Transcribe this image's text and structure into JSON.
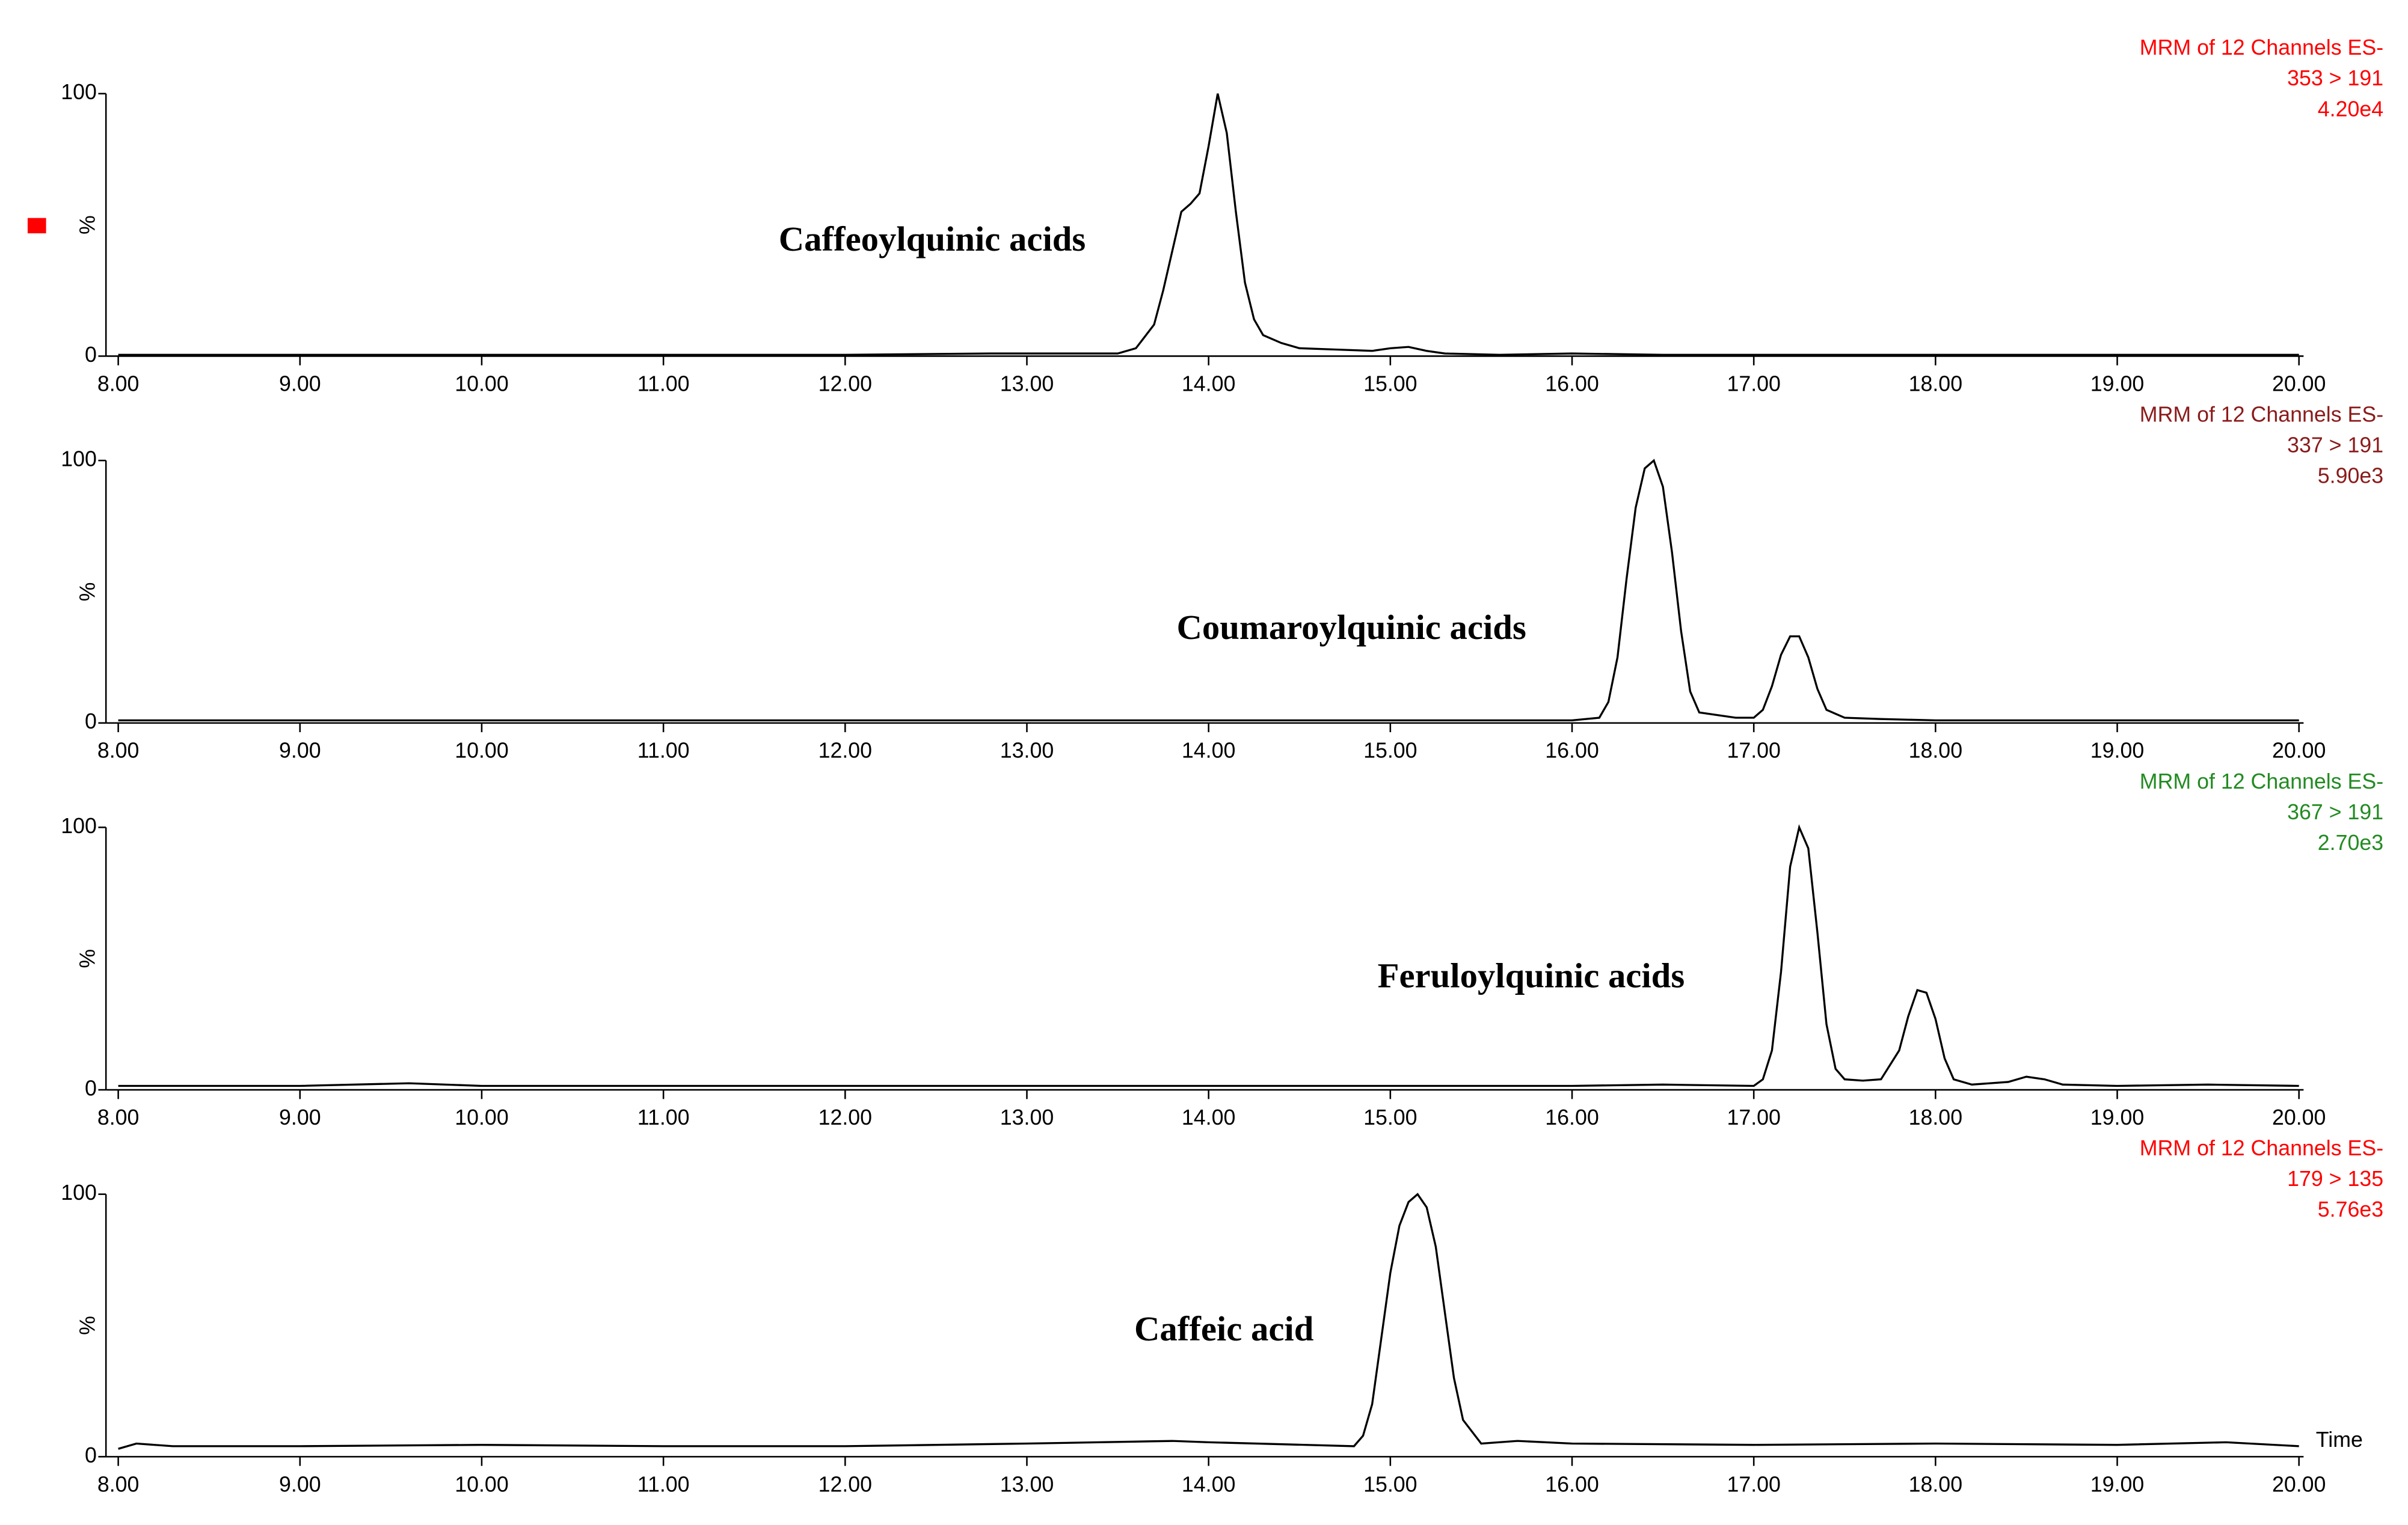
{
  "chart_data": [
    {
      "type": "line",
      "header": [
        "MRM of 12 Channels ES-",
        "353 > 191",
        "4.20e4"
      ],
      "header_color": "#ff0000",
      "annotation": "Caffeoylquinic acids",
      "ylabel": "%",
      "xlim": [
        8,
        20
      ],
      "xticks": [
        {
          "value": 8,
          "label": "8.00"
        },
        {
          "value": 9,
          "label": "9.00"
        },
        {
          "value": 10,
          "label": "10.00"
        },
        {
          "value": 11,
          "label": "11.00"
        },
        {
          "value": 12,
          "label": "12.00"
        },
        {
          "value": 13,
          "label": "13.00"
        },
        {
          "value": 14,
          "label": "14.00"
        },
        {
          "value": 15,
          "label": "15.00"
        },
        {
          "value": 16,
          "label": "16.00"
        },
        {
          "value": 17,
          "label": "17.00"
        },
        {
          "value": 18,
          "label": "18.00"
        },
        {
          "value": 19,
          "label": "19.00"
        },
        {
          "value": 20,
          "label": "20.00"
        }
      ],
      "ylim": [
        0,
        100
      ],
      "yticks": [
        0,
        100
      ],
      "color": "#000000",
      "x": [
        8,
        9,
        10,
        11,
        12,
        12.8,
        13.2,
        13.5,
        13.6,
        13.7,
        13.75,
        13.8,
        13.85,
        13.9,
        13.95,
        14,
        14.05,
        14.1,
        14.15,
        14.2,
        14.25,
        14.3,
        14.4,
        14.5,
        14.7,
        14.9,
        15.0,
        15.1,
        15.2,
        15.3,
        15.6,
        16,
        16.5,
        17,
        18,
        19,
        20
      ],
      "values": [
        0.5,
        0.5,
        0.5,
        0.5,
        0.5,
        1,
        1,
        1,
        3,
        12,
        25,
        40,
        55,
        58,
        62,
        80,
        100,
        85,
        55,
        28,
        14,
        8,
        5,
        3,
        2.5,
        2,
        3,
        3.5,
        2,
        1,
        0.5,
        1,
        0.5,
        0.5,
        0.5,
        0.5,
        0.5
      ]
    },
    {
      "type": "line",
      "header": [
        "MRM of 12 Channels ES-",
        "337 > 191",
        "5.90e3"
      ],
      "header_color": "#8b1a1a",
      "annotation": "Coumaroylquinic acids",
      "ylabel": "%",
      "xlim": [
        8,
        20
      ],
      "xticks": [
        {
          "value": 8,
          "label": "8.00"
        },
        {
          "value": 9,
          "label": "9.00"
        },
        {
          "value": 10,
          "label": "10.00"
        },
        {
          "value": 11,
          "label": "11.00"
        },
        {
          "value": 12,
          "label": "12.00"
        },
        {
          "value": 13,
          "label": "13.00"
        },
        {
          "value": 14,
          "label": "14.00"
        },
        {
          "value": 15,
          "label": "15.00"
        },
        {
          "value": 16,
          "label": "16.00"
        },
        {
          "value": 17,
          "label": "17.00"
        },
        {
          "value": 18,
          "label": "18.00"
        },
        {
          "value": 19,
          "label": "19.00"
        },
        {
          "value": 20,
          "label": "20.00"
        }
      ],
      "ylim": [
        0,
        100
      ],
      "yticks": [
        0,
        100
      ],
      "color": "#000000",
      "x": [
        8,
        10,
        12,
        14,
        15,
        16,
        16.15,
        16.2,
        16.25,
        16.3,
        16.35,
        16.4,
        16.45,
        16.5,
        16.55,
        16.6,
        16.65,
        16.7,
        16.8,
        16.9,
        17.0,
        17.05,
        17.1,
        17.15,
        17.2,
        17.25,
        17.3,
        17.35,
        17.4,
        17.5,
        17.7,
        18,
        19,
        20
      ],
      "values": [
        1,
        1,
        1,
        1,
        1,
        1,
        2,
        8,
        25,
        55,
        82,
        97,
        100,
        90,
        65,
        35,
        12,
        4,
        3,
        2,
        2,
        5,
        14,
        26,
        33,
        33,
        25,
        13,
        5,
        2,
        1.5,
        1,
        1,
        1
      ]
    },
    {
      "type": "line",
      "header": [
        "MRM of 12 Channels ES-",
        "367 > 191",
        "2.70e3"
      ],
      "header_color": "#228b22",
      "annotation": "Feruloylquinic acids",
      "ylabel": "%",
      "xlim": [
        8,
        20
      ],
      "xticks": [
        {
          "value": 8,
          "label": "8.00"
        },
        {
          "value": 9,
          "label": "9.00"
        },
        {
          "value": 10,
          "label": "10.00"
        },
        {
          "value": 11,
          "label": "11.00"
        },
        {
          "value": 12,
          "label": "12.00"
        },
        {
          "value": 13,
          "label": "13.00"
        },
        {
          "value": 14,
          "label": "14.00"
        },
        {
          "value": 15,
          "label": "15.00"
        },
        {
          "value": 16,
          "label": "16.00"
        },
        {
          "value": 17,
          "label": "17.00"
        },
        {
          "value": 18,
          "label": "18.00"
        },
        {
          "value": 19,
          "label": "19.00"
        },
        {
          "value": 20,
          "label": "20.00"
        }
      ],
      "ylim": [
        0,
        100
      ],
      "yticks": [
        0,
        100
      ],
      "color": "#000000",
      "x": [
        8,
        9,
        9.6,
        10,
        11,
        12,
        13,
        14,
        15,
        16,
        16.5,
        17,
        17.05,
        17.1,
        17.15,
        17.2,
        17.25,
        17.3,
        17.35,
        17.4,
        17.45,
        17.5,
        17.6,
        17.7,
        17.8,
        17.85,
        17.9,
        17.95,
        18.0,
        18.05,
        18.1,
        18.2,
        18.4,
        18.5,
        18.6,
        18.7,
        19,
        19.5,
        20
      ],
      "values": [
        1.5,
        1.5,
        2.5,
        1.5,
        1.5,
        1.5,
        1.5,
        1.5,
        1.5,
        1.5,
        2,
        1.5,
        4,
        15,
        45,
        85,
        100,
        92,
        60,
        25,
        8,
        4,
        3.5,
        4,
        15,
        28,
        38,
        37,
        27,
        12,
        4,
        2,
        3,
        5,
        4,
        2,
        1.5,
        2,
        1.5
      ]
    },
    {
      "type": "line",
      "header": [
        "MRM of 12 Channels ES-",
        "179 > 135",
        "5.76e3"
      ],
      "header_color": "#ff0000",
      "annotation": "Caffeic acid",
      "ylabel": "%",
      "xlabel": "Time",
      "xlim": [
        8,
        20
      ],
      "xticks": [
        {
          "value": 8,
          "label": "8.00"
        },
        {
          "value": 9,
          "label": "9.00"
        },
        {
          "value": 10,
          "label": "10.00"
        },
        {
          "value": 11,
          "label": "11.00"
        },
        {
          "value": 12,
          "label": "12.00"
        },
        {
          "value": 13,
          "label": "13.00"
        },
        {
          "value": 14,
          "label": "14.00"
        },
        {
          "value": 15,
          "label": "15.00"
        },
        {
          "value": 16,
          "label": "16.00"
        },
        {
          "value": 17,
          "label": "17.00"
        },
        {
          "value": 18,
          "label": "18.00"
        },
        {
          "value": 19,
          "label": "19.00"
        },
        {
          "value": 20,
          "label": "20.00"
        }
      ],
      "ylim": [
        0,
        100
      ],
      "yticks": [
        0,
        100
      ],
      "color": "#000000",
      "x": [
        8,
        8.1,
        8.3,
        9,
        10,
        11,
        12,
        13,
        13.8,
        14,
        14.8,
        14.85,
        14.9,
        14.95,
        15,
        15.05,
        15.1,
        15.15,
        15.2,
        15.25,
        15.3,
        15.35,
        15.4,
        15.5,
        15.7,
        16,
        17,
        18,
        19,
        19.6,
        20
      ],
      "values": [
        3,
        5,
        4,
        4,
        4.5,
        4,
        4,
        5,
        6,
        5.5,
        4,
        8,
        20,
        45,
        70,
        88,
        97,
        100,
        95,
        80,
        55,
        30,
        14,
        5,
        6,
        5,
        4.5,
        5,
        4.5,
        5.5,
        4
      ]
    }
  ]
}
